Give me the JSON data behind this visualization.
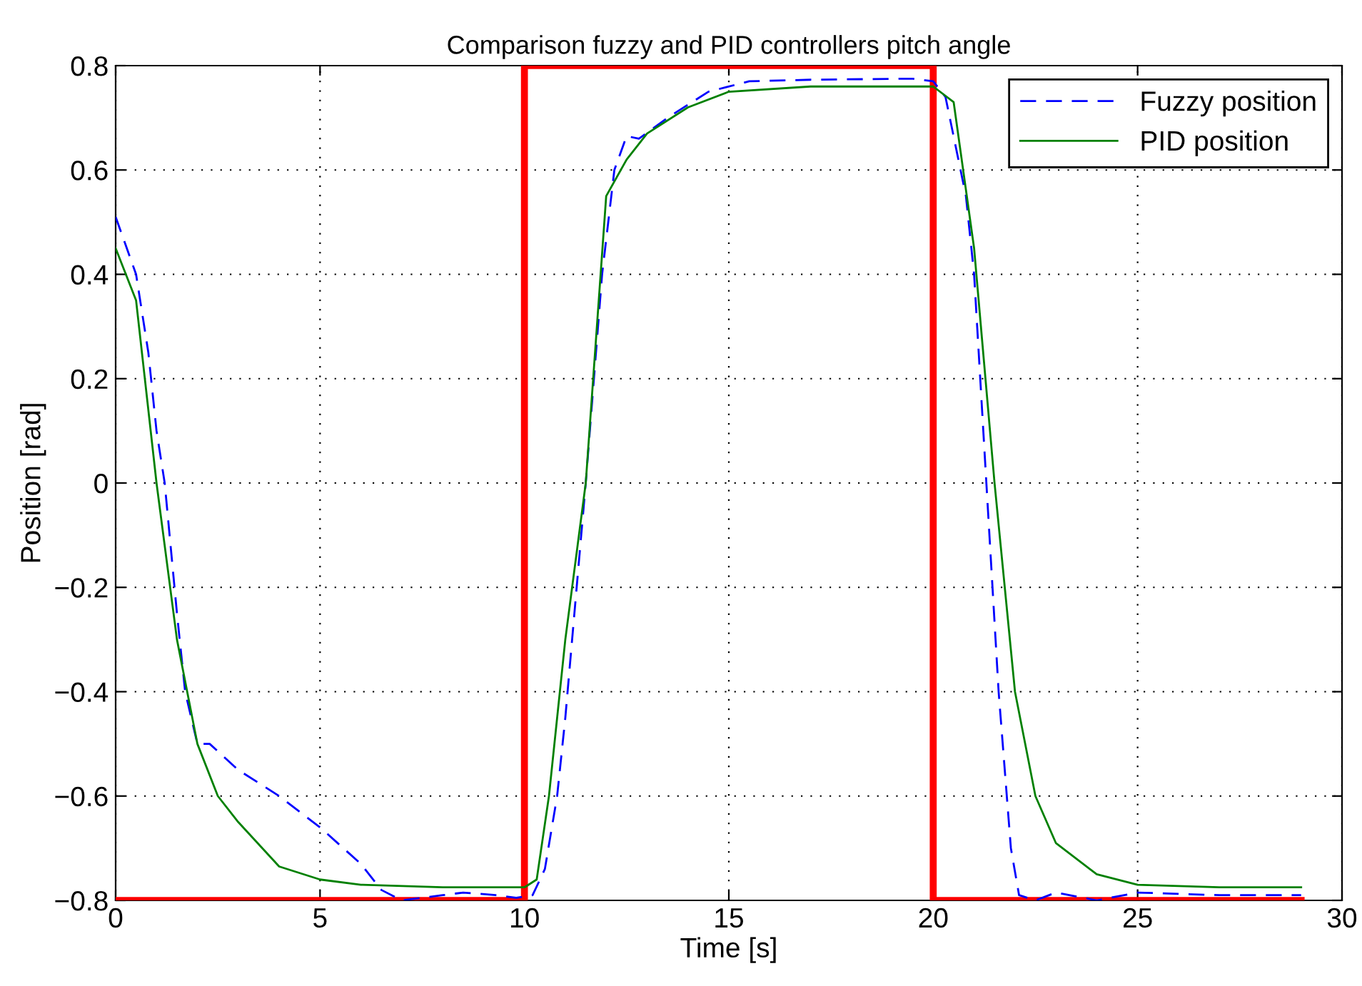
{
  "chart_data": {
    "type": "line",
    "title": "Comparison fuzzy and PID controllers pitch angle",
    "xlabel": "Time [s]",
    "ylabel": "Position [rad]",
    "series": [
      {
        "name": "Fuzzy position",
        "color": "#0000ff",
        "line_style": "dashed",
        "x": [
          0,
          0.5,
          0.8,
          1.0,
          1.2,
          1.5,
          1.7,
          2.0,
          2.3,
          3,
          4,
          5,
          6,
          6.5,
          7,
          8,
          8.5,
          9.3,
          9.8,
          10.2,
          10.5,
          10.8,
          11.0,
          11.5,
          11.9,
          12.2,
          12.5,
          12.8,
          13.5,
          14.5,
          15.5,
          17,
          19.5,
          20.0,
          20.3,
          20.8,
          21.0,
          21.3,
          21.6,
          21.9,
          22.1,
          22.5,
          23,
          24,
          25,
          27,
          29
        ],
        "values": [
          0.51,
          0.4,
          0.25,
          0.1,
          0.0,
          -0.25,
          -0.4,
          -0.5,
          -0.5,
          -0.55,
          -0.6,
          -0.66,
          -0.73,
          -0.78,
          -0.8,
          -0.79,
          -0.785,
          -0.79,
          -0.795,
          -0.79,
          -0.74,
          -0.6,
          -0.45,
          0.0,
          0.4,
          0.6,
          0.665,
          0.66,
          0.7,
          0.75,
          0.77,
          0.773,
          0.775,
          0.77,
          0.74,
          0.55,
          0.4,
          0.0,
          -0.4,
          -0.7,
          -0.79,
          -0.8,
          -0.785,
          -0.8,
          -0.785,
          -0.79,
          -0.79
        ]
      },
      {
        "name": "PID position",
        "color": "#008000",
        "line_style": "solid",
        "x": [
          0,
          0.5,
          1.0,
          1.5,
          2.0,
          2.5,
          3,
          4,
          5,
          6,
          8,
          10,
          10.3,
          10.6,
          11.0,
          11.5,
          12.0,
          12.5,
          13.0,
          14,
          15,
          17,
          20,
          20.5,
          21.0,
          21.5,
          22.0,
          22.5,
          23,
          24,
          25,
          27,
          29
        ],
        "values": [
          0.45,
          0.35,
          0.0,
          -0.3,
          -0.5,
          -0.6,
          -0.65,
          -0.735,
          -0.76,
          -0.77,
          -0.775,
          -0.775,
          -0.76,
          -0.6,
          -0.3,
          0.0,
          0.55,
          0.62,
          0.67,
          0.72,
          0.75,
          0.76,
          0.76,
          0.73,
          0.45,
          0.0,
          -0.4,
          -0.6,
          -0.69,
          -0.75,
          -0.77,
          -0.775,
          -0.775
        ]
      },
      {
        "color": "#ff0000",
        "line_style": "solid",
        "x": [
          0,
          10,
          10,
          20,
          20,
          29
        ],
        "values": [
          -0.8,
          -0.8,
          0.8,
          0.8,
          -0.8,
          -0.8
        ]
      }
    ],
    "xlim": [
      0,
      30
    ],
    "ylim": [
      -0.8,
      0.8
    ],
    "xticks": [
      0,
      5,
      10,
      15,
      20,
      25,
      30
    ],
    "yticks": [
      {
        "value": -0.8,
        "label": "−0.8"
      },
      {
        "value": -0.6,
        "label": "−0.6"
      },
      {
        "value": -0.4,
        "label": "−0.4"
      },
      {
        "value": -0.2,
        "label": "−0.2"
      },
      0,
      0.2,
      0.4,
      0.6,
      0.8
    ],
    "grid": true,
    "legend": "top right"
  }
}
